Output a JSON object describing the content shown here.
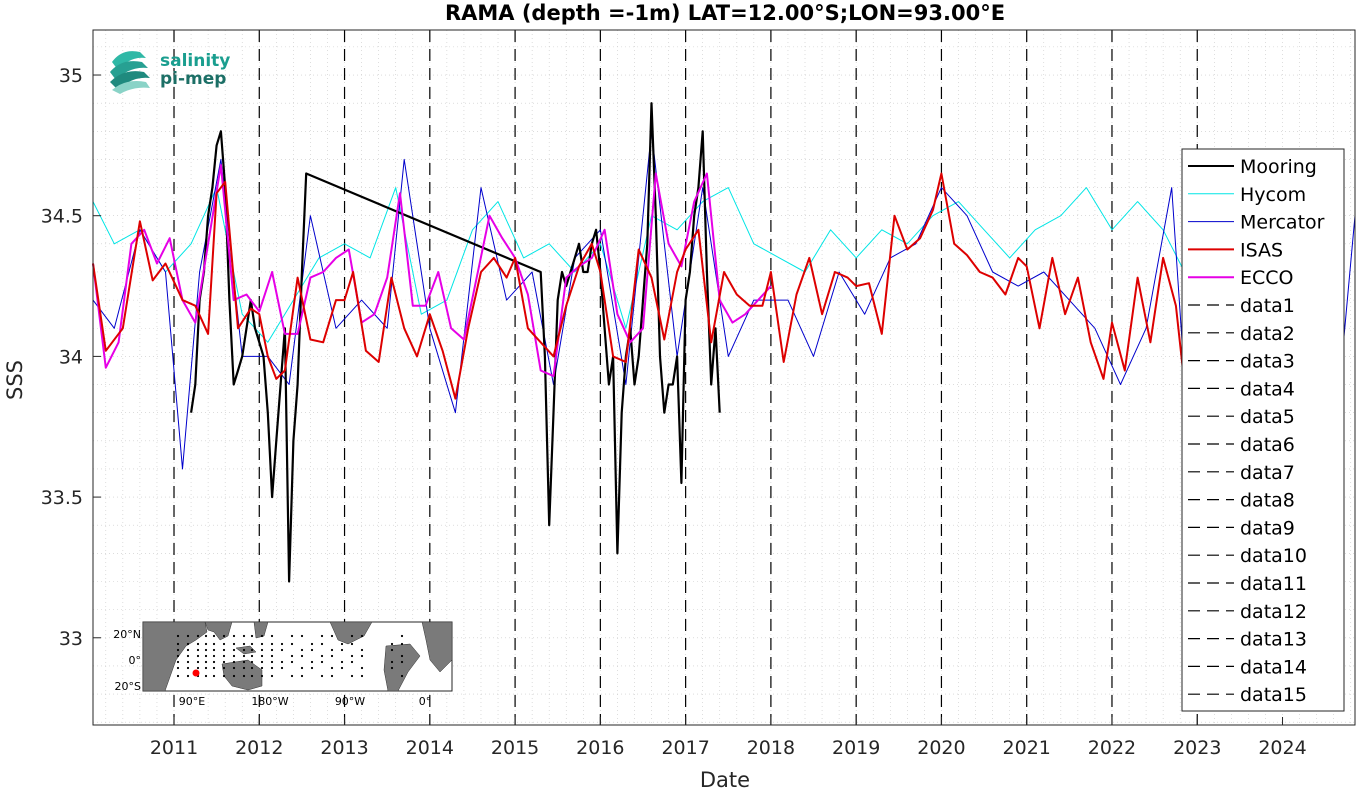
{
  "chart_data": {
    "type": "line",
    "title": "RAMA (depth =-1m) LAT=12.00°S;LON=93.00°E",
    "xlabel": "Date",
    "ylabel": "SSS",
    "xlim": [
      2010.05,
      2024.85
    ],
    "ylim": [
      32.69,
      35.16
    ],
    "x_ticks": [
      2011,
      2012,
      2013,
      2014,
      2015,
      2016,
      2017,
      2018,
      2019,
      2020,
      2021,
      2022,
      2023,
      2024
    ],
    "x_tick_labels": [
      "2011",
      "2012",
      "2013",
      "2014",
      "2015",
      "2016",
      "2017",
      "2018",
      "2019",
      "2020",
      "2021",
      "2022",
      "2023",
      "2024"
    ],
    "y_ticks": [
      33,
      33.5,
      34,
      34.5,
      35
    ],
    "y_tick_labels": [
      "33",
      "33.5",
      "34",
      "34.5",
      "35"
    ],
    "grid": true,
    "legend_position": "right",
    "vertical_dashed_lines_x": [
      2011,
      2012,
      2013,
      2014,
      2015,
      2016,
      2017,
      2018,
      2019,
      2020,
      2021,
      2022,
      2023
    ],
    "series": [
      {
        "name": "Mooring",
        "color": "#000000",
        "style": "solid-marker",
        "x": [
          2011.2,
          2011.25,
          2011.3,
          2011.35,
          2011.4,
          2011.45,
          2011.5,
          2011.55,
          2011.6,
          2011.65,
          2011.7,
          2011.75,
          2011.8,
          2011.85,
          2011.9,
          2011.95,
          2012.0,
          2012.05,
          2012.1,
          2012.15,
          2012.2,
          2012.25,
          2012.3,
          2012.35,
          2012.4,
          2012.45,
          2012.5,
          2012.55,
          2015.3,
          2015.35,
          2015.4,
          2015.45,
          2015.5,
          2015.55,
          2015.6,
          2015.65,
          2015.7,
          2015.75,
          2015.8,
          2015.85,
          2015.9,
          2015.95,
          2016.0,
          2016.05,
          2016.1,
          2016.15,
          2016.2,
          2016.25,
          2016.3,
          2016.35,
          2016.4,
          2016.45,
          2016.5,
          2016.55,
          2016.6,
          2016.65,
          2016.7,
          2016.75,
          2016.8,
          2016.85,
          2016.9,
          2016.95,
          2017.0,
          2017.05,
          2017.1,
          2017.15,
          2017.2,
          2017.25,
          2017.3,
          2017.35,
          2017.4
        ],
        "y": [
          33.8,
          33.9,
          34.2,
          34.3,
          34.5,
          34.6,
          34.75,
          34.8,
          34.6,
          34.2,
          33.9,
          33.95,
          34.0,
          34.1,
          34.2,
          34.1,
          34.05,
          34.0,
          33.8,
          33.5,
          33.7,
          33.9,
          34.1,
          33.2,
          33.7,
          33.9,
          34.3,
          34.65,
          34.3,
          34.0,
          33.4,
          33.8,
          34.2,
          34.3,
          34.25,
          34.3,
          34.35,
          34.4,
          34.3,
          34.3,
          34.4,
          34.45,
          34.3,
          34.1,
          33.9,
          34.0,
          33.3,
          33.8,
          34.0,
          34.1,
          33.9,
          34.0,
          34.2,
          34.4,
          34.9,
          34.5,
          34.0,
          33.8,
          33.9,
          33.9,
          34.0,
          33.55,
          34.2,
          34.3,
          34.5,
          34.6,
          34.8,
          34.3,
          33.9,
          34.1,
          33.8
        ]
      },
      {
        "name": "Hycom",
        "color": "#00e5e5",
        "style": "solid",
        "x": [
          2010.05,
          2010.3,
          2010.6,
          2010.9,
          2011.2,
          2011.5,
          2011.8,
          2012.1,
          2012.4,
          2012.7,
          2013.0,
          2013.3,
          2013.6,
          2013.9,
          2014.2,
          2014.5,
          2014.8,
          2015.1,
          2015.4,
          2015.7,
          2016.0,
          2016.3,
          2016.6,
          2016.9,
          2017.2,
          2017.5,
          2017.8,
          2018.1,
          2018.4,
          2018.7,
          2019.0,
          2019.3,
          2019.6,
          2019.9,
          2020.2,
          2020.5,
          2020.8,
          2021.1,
          2021.4,
          2021.7,
          2022.0,
          2022.3,
          2022.6,
          2022.85
        ],
        "y": [
          34.55,
          34.4,
          34.45,
          34.3,
          34.4,
          34.6,
          34.15,
          34.05,
          34.2,
          34.35,
          34.4,
          34.35,
          34.6,
          34.15,
          34.2,
          34.45,
          34.55,
          34.35,
          34.4,
          34.3,
          34.4,
          34.1,
          34.5,
          34.45,
          34.55,
          34.6,
          34.4,
          34.35,
          34.3,
          34.45,
          34.35,
          34.45,
          34.4,
          34.5,
          34.55,
          34.45,
          34.35,
          34.45,
          34.5,
          34.6,
          34.45,
          34.55,
          34.45,
          34.3
        ]
      },
      {
        "name": "Mercator",
        "color": "#0000cc",
        "style": "solid",
        "x": [
          2010.05,
          2010.3,
          2010.6,
          2010.9,
          2011.1,
          2011.3,
          2011.55,
          2011.8,
          2012.1,
          2012.35,
          2012.6,
          2012.9,
          2013.2,
          2013.5,
          2013.7,
          2014.0,
          2014.3,
          2014.6,
          2014.9,
          2015.2,
          2015.45,
          2015.7,
          2016.0,
          2016.3,
          2016.6,
          2016.9,
          2017.2,
          2017.5,
          2017.8,
          2018.2,
          2018.5,
          2018.8,
          2019.1,
          2019.4,
          2019.7,
          2020.0,
          2020.3,
          2020.6,
          2020.9,
          2021.2,
          2021.5,
          2021.8,
          2022.1,
          2022.4,
          2022.7,
          2022.9,
          2024.7,
          2024.85
        ],
        "y": [
          34.2,
          34.1,
          34.45,
          34.3,
          33.6,
          34.3,
          34.7,
          34.0,
          34.0,
          33.9,
          34.5,
          34.1,
          34.2,
          34.1,
          34.7,
          34.1,
          33.8,
          34.6,
          34.2,
          34.3,
          33.9,
          34.35,
          34.45,
          33.9,
          34.8,
          34.0,
          34.6,
          34.0,
          34.2,
          34.2,
          34.0,
          34.3,
          34.15,
          34.35,
          34.4,
          34.6,
          34.5,
          34.3,
          34.25,
          34.3,
          34.2,
          34.1,
          33.9,
          34.1,
          34.6,
          33.7,
          34.0,
          34.5
        ]
      },
      {
        "name": "ISAS",
        "color": "#dd0000",
        "style": "solid",
        "x": [
          2010.05,
          2010.2,
          2010.4,
          2010.6,
          2010.75,
          2010.9,
          2011.1,
          2011.25,
          2011.4,
          2011.5,
          2011.6,
          2011.75,
          2011.9,
          2012.0,
          2012.1,
          2012.2,
          2012.3,
          2012.45,
          2012.6,
          2012.75,
          2012.9,
          2013.0,
          2013.1,
          2013.25,
          2013.4,
          2013.55,
          2013.7,
          2013.85,
          2014.0,
          2014.15,
          2014.3,
          2014.45,
          2014.6,
          2014.75,
          2014.9,
          2015.0,
          2015.15,
          2015.3,
          2015.45,
          2015.6,
          2015.75,
          2015.9,
          2016.0,
          2016.15,
          2016.3,
          2016.45,
          2016.6,
          2016.75,
          2016.9,
          2017.0,
          2017.15,
          2017.3,
          2017.45,
          2017.6,
          2017.75,
          2017.9,
          2018.0,
          2018.15,
          2018.3,
          2018.45,
          2018.6,
          2018.75,
          2018.9,
          2019.0,
          2019.15,
          2019.3,
          2019.45,
          2019.6,
          2019.75,
          2019.9,
          2020.0,
          2020.15,
          2020.3,
          2020.45,
          2020.6,
          2020.75,
          2020.9,
          2021.0,
          2021.15,
          2021.3,
          2021.45,
          2021.6,
          2021.75,
          2021.9,
          2022.0,
          2022.15,
          2022.3,
          2022.45,
          2022.6,
          2022.75,
          2022.85
        ],
        "y": [
          34.33,
          34.02,
          34.1,
          34.48,
          34.27,
          34.33,
          34.2,
          34.18,
          34.08,
          34.58,
          34.62,
          34.1,
          34.17,
          34.15,
          34.0,
          33.92,
          33.95,
          34.28,
          34.06,
          34.05,
          34.2,
          34.2,
          34.3,
          34.02,
          33.98,
          34.28,
          34.1,
          34.0,
          34.15,
          34.02,
          33.85,
          34.1,
          34.3,
          34.35,
          34.28,
          34.35,
          34.1,
          34.05,
          34.0,
          34.18,
          34.32,
          34.4,
          34.3,
          34.0,
          33.98,
          34.38,
          34.28,
          34.06,
          34.3,
          34.38,
          34.45,
          34.05,
          34.3,
          34.22,
          34.18,
          34.18,
          34.3,
          33.98,
          34.22,
          34.35,
          34.15,
          34.3,
          34.28,
          34.25,
          34.26,
          34.08,
          34.5,
          34.38,
          34.42,
          34.52,
          34.65,
          34.4,
          34.36,
          34.3,
          34.28,
          34.22,
          34.35,
          34.32,
          34.1,
          34.35,
          34.15,
          34.28,
          34.05,
          33.92,
          34.12,
          33.95,
          34.28,
          34.05,
          34.35,
          34.18,
          33.9
        ]
      },
      {
        "name": "ECCO",
        "color": "#e600e6",
        "style": "solid",
        "x": [
          2010.05,
          2010.2,
          2010.35,
          2010.5,
          2010.65,
          2010.8,
          2010.95,
          2011.1,
          2011.25,
          2011.4,
          2011.55,
          2011.7,
          2011.85,
          2012.0,
          2012.15,
          2012.3,
          2012.45,
          2012.6,
          2012.75,
          2012.9,
          2013.05,
          2013.2,
          2013.35,
          2013.5,
          2013.65,
          2013.8,
          2013.95,
          2014.1,
          2014.25,
          2014.4,
          2014.55,
          2014.7,
          2014.85,
          2015.0,
          2015.15,
          2015.3,
          2015.45,
          2015.6,
          2015.75,
          2015.9,
          2016.05,
          2016.2,
          2016.35,
          2016.5,
          2016.65,
          2016.8,
          2016.95,
          2017.1,
          2017.25,
          2017.4,
          2017.55,
          2017.7,
          2017.85,
          2018.0
        ],
        "y": [
          34.33,
          33.96,
          34.05,
          34.4,
          34.45,
          34.33,
          34.42,
          34.2,
          34.12,
          34.4,
          34.68,
          34.2,
          34.22,
          34.16,
          34.3,
          34.08,
          34.08,
          34.28,
          34.3,
          34.35,
          34.38,
          34.12,
          34.15,
          34.28,
          34.58,
          34.18,
          34.18,
          34.3,
          34.1,
          34.06,
          34.28,
          34.5,
          34.42,
          34.35,
          34.22,
          33.95,
          33.93,
          34.28,
          34.32,
          34.35,
          34.45,
          34.15,
          34.05,
          34.1,
          34.65,
          34.4,
          34.32,
          34.55,
          34.65,
          34.2,
          34.12,
          34.15,
          34.2,
          34.25
        ]
      }
    ],
    "dashed_series_names": [
      "data1",
      "data2",
      "data3",
      "data4",
      "data5",
      "data6",
      "data7",
      "data8",
      "data9",
      "data10",
      "data11",
      "data12",
      "data13",
      "data14",
      "data15"
    ]
  },
  "logo": {
    "line1": "salinity",
    "line2": "pi-mep"
  },
  "inset_map": {
    "y_tick_labels": [
      "20°N",
      "0°",
      "20°S"
    ],
    "x_tick_labels": [
      "90°E",
      "180°W",
      "90°W",
      "0°"
    ],
    "marker_color": "#ff0000"
  }
}
